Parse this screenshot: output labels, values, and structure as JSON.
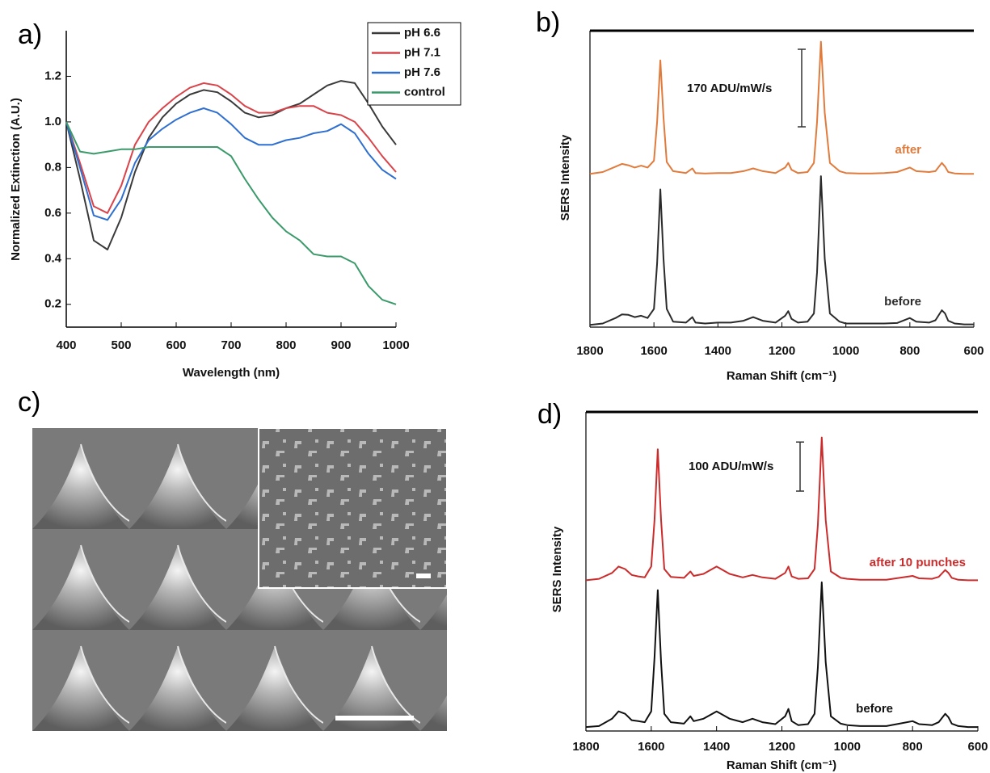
{
  "panel_labels": [
    "a)",
    "b)",
    "c)",
    "d)"
  ],
  "chart_data": [
    {
      "type": "line",
      "xlabel": "Wavelength (nm)",
      "ylabel": "Normalized Extinction (A.U.)",
      "x": [
        400,
        425,
        450,
        475,
        500,
        525,
        550,
        575,
        600,
        625,
        650,
        675,
        700,
        725,
        750,
        775,
        800,
        825,
        850,
        875,
        900,
        925,
        950,
        975,
        1000
      ],
      "xlim": [
        400,
        1000
      ],
      "xticks": [
        400,
        500,
        600,
        700,
        800,
        900,
        1000
      ],
      "ylim": [
        0.1,
        1.4
      ],
      "yticks": [
        0.2,
        0.4,
        0.6,
        0.8,
        {
          "value": 1,
          "label": "1.0"
        },
        1.2
      ],
      "legend": "upper right",
      "series": [
        {
          "name": "pH 6.6",
          "color": "#3a3a3a",
          "values": [
            1.0,
            0.75,
            0.48,
            0.44,
            0.58,
            0.78,
            0.93,
            1.02,
            1.08,
            1.12,
            1.14,
            1.13,
            1.09,
            1.04,
            1.02,
            1.03,
            1.06,
            1.08,
            1.12,
            1.16,
            1.18,
            1.17,
            1.08,
            0.98,
            0.9
          ]
        },
        {
          "name": "pH 7.1",
          "color": "#d9434a",
          "values": [
            1.0,
            0.82,
            0.63,
            0.6,
            0.72,
            0.9,
            1.0,
            1.06,
            1.11,
            1.15,
            1.17,
            1.16,
            1.12,
            1.07,
            1.04,
            1.04,
            1.06,
            1.07,
            1.07,
            1.04,
            1.03,
            1.0,
            0.93,
            0.85,
            0.78
          ]
        },
        {
          "name": "pH 7.6",
          "color": "#2f6fd0",
          "values": [
            1.0,
            0.8,
            0.59,
            0.57,
            0.66,
            0.82,
            0.92,
            0.97,
            1.01,
            1.04,
            1.06,
            1.04,
            0.99,
            0.93,
            0.9,
            0.9,
            0.92,
            0.93,
            0.95,
            0.96,
            0.99,
            0.95,
            0.86,
            0.79,
            0.75
          ]
        },
        {
          "name": "control",
          "color": "#3a9a6a",
          "values": [
            1.0,
            0.87,
            0.86,
            0.87,
            0.88,
            0.88,
            0.89,
            0.89,
            0.89,
            0.89,
            0.89,
            0.89,
            0.85,
            0.75,
            0.66,
            0.58,
            0.52,
            0.48,
            0.42,
            0.41,
            0.41,
            0.38,
            0.28,
            0.22,
            0.2
          ]
        }
      ]
    },
    {
      "type": "spectrum",
      "xlabel": "Raman Shift (cm⁻¹)",
      "ylabel": "SERS Intensity",
      "x": [
        1800,
        1760,
        1720,
        1700,
        1680,
        1660,
        1640,
        1620,
        1600,
        1590,
        1580,
        1570,
        1560,
        1540,
        1500,
        1480,
        1470,
        1440,
        1400,
        1360,
        1320,
        1290,
        1260,
        1220,
        1190,
        1180,
        1170,
        1150,
        1120,
        1100,
        1090,
        1078,
        1066,
        1050,
        1020,
        1000,
        960,
        920,
        880,
        840,
        800,
        780,
        740,
        720,
        700,
        690,
        680,
        660,
        630,
        600
      ],
      "xlim": [
        1800,
        600
      ],
      "xticks": [
        1800,
        1600,
        1400,
        1200,
        1000,
        800,
        600
      ],
      "ylim": [
        0,
        650
      ],
      "scale_bar": {
        "value": 170,
        "label": "170 ADU/mW/s"
      },
      "series": [
        {
          "name": "after",
          "color": "#e07b3c",
          "values": [
            336,
            340,
            352,
            358,
            355,
            350,
            354,
            350,
            365,
            450,
            585,
            460,
            362,
            342,
            338,
            348,
            338,
            337,
            338,
            338,
            342,
            348,
            342,
            338,
            350,
            360,
            345,
            338,
            340,
            360,
            450,
            626,
            470,
            360,
            342,
            338,
            337,
            337,
            338,
            340,
            350,
            342,
            340,
            342,
            360,
            352,
            340,
            337,
            336,
            336
          ]
        },
        {
          "name": "before",
          "color": "#2b2b2b",
          "values": [
            5,
            8,
            20,
            28,
            27,
            22,
            25,
            20,
            40,
            140,
            302,
            150,
            40,
            12,
            10,
            22,
            10,
            8,
            10,
            10,
            14,
            22,
            14,
            10,
            25,
            35,
            18,
            10,
            12,
            30,
            120,
            331,
            150,
            30,
            12,
            8,
            8,
            8,
            8,
            9,
            20,
            12,
            10,
            15,
            37,
            30,
            14,
            8,
            6,
            6
          ]
        }
      ]
    },
    {
      "type": "spectrum",
      "xlabel": "Raman Shift (cm⁻¹)",
      "ylabel": "SERS Intensity",
      "x": [
        1800,
        1760,
        1720,
        1700,
        1680,
        1660,
        1640,
        1620,
        1600,
        1590,
        1580,
        1570,
        1560,
        1540,
        1500,
        1480,
        1470,
        1440,
        1400,
        1360,
        1320,
        1290,
        1260,
        1220,
        1190,
        1180,
        1170,
        1150,
        1120,
        1100,
        1090,
        1078,
        1066,
        1050,
        1020,
        1000,
        960,
        920,
        880,
        840,
        800,
        780,
        740,
        720,
        700,
        690,
        680,
        660,
        630,
        600
      ],
      "xlim": [
        1800,
        600
      ],
      "xticks": [
        1800,
        1600,
        1400,
        1200,
        1000,
        800,
        600
      ],
      "ylim": [
        0,
        650
      ],
      "scale_bar": {
        "value": 100,
        "label": "100 ADU/mW/s"
      },
      "series": [
        {
          "name": "after 10 punches",
          "color": "#cc2b2b",
          "values": [
            307,
            310,
            322,
            335,
            330,
            318,
            315,
            313,
            335,
            430,
            574,
            430,
            330,
            314,
            312,
            325,
            316,
            320,
            335,
            320,
            313,
            318,
            313,
            310,
            322,
            335,
            315,
            310,
            311,
            330,
            420,
            598,
            430,
            325,
            312,
            310,
            308,
            308,
            308,
            312,
            316,
            311,
            310,
            314,
            328,
            322,
            312,
            308,
            307,
            307
          ]
        },
        {
          "name": "before",
          "color": "#111111",
          "values": [
            8,
            10,
            25,
            40,
            35,
            22,
            20,
            18,
            40,
            150,
            287,
            140,
            35,
            18,
            15,
            30,
            20,
            25,
            40,
            25,
            18,
            25,
            18,
            14,
            30,
            45,
            20,
            12,
            14,
            35,
            130,
            303,
            140,
            30,
            15,
            12,
            10,
            10,
            10,
            15,
            20,
            14,
            12,
            18,
            35,
            28,
            15,
            10,
            8,
            8
          ]
        }
      ]
    }
  ]
}
